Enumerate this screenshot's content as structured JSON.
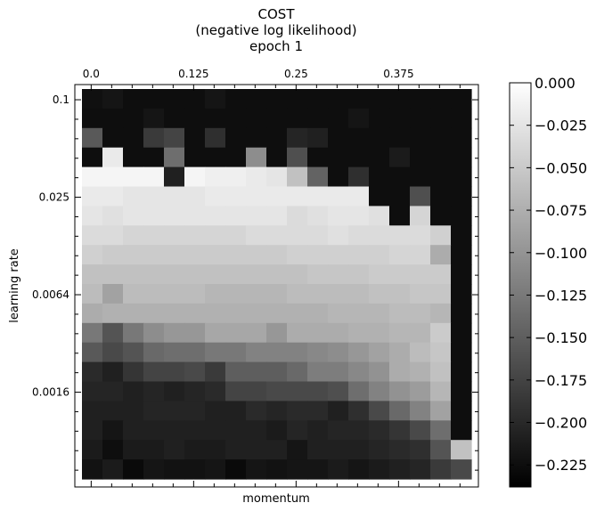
{
  "chart_data": {
    "type": "heatmap",
    "title": [
      "COST",
      "(negative log likelihood)",
      "epoch 1"
    ],
    "xlabel": "momentum",
    "ylabel": "learning rate",
    "x_tick_labels": [
      "0.0",
      "0.125",
      "0.25",
      "0.375"
    ],
    "y_tick_labels": [
      "0.1",
      "0.025",
      "0.0064",
      "0.0016"
    ],
    "colorbar": {
      "ticks": [
        0.0,
        -0.025,
        -0.05,
        -0.075,
        -0.1,
        -0.125,
        -0.15,
        -0.175,
        -0.2,
        -0.225
      ],
      "tick_labels": [
        "0.000",
        "−0.025",
        "−0.050",
        "−0.075",
        "−0.100",
        "−0.125",
        "−0.150",
        "−0.175",
        "−0.200",
        "−0.225"
      ],
      "vmin": -0.238,
      "vmax": 0.0,
      "cmap": "gray"
    },
    "grid": false,
    "n_cols": 19,
    "n_rows": 19,
    "values": [
      [
        -0.23,
        -0.225,
        -0.232,
        -0.232,
        -0.232,
        -0.232,
        -0.225,
        -0.232,
        -0.232,
        -0.232,
        -0.232,
        -0.232,
        -0.232,
        -0.232,
        -0.232,
        -0.232,
        -0.232,
        -0.232,
        -0.232
      ],
      [
        -0.232,
        -0.232,
        -0.232,
        -0.225,
        -0.232,
        -0.232,
        -0.232,
        -0.232,
        -0.232,
        -0.232,
        -0.232,
        -0.232,
        -0.232,
        -0.225,
        -0.232,
        -0.232,
        -0.232,
        -0.232,
        -0.232
      ],
      [
        -0.16,
        -0.232,
        -0.232,
        -0.19,
        -0.18,
        -0.232,
        -0.2,
        -0.232,
        -0.232,
        -0.232,
        -0.21,
        -0.215,
        -0.232,
        -0.232,
        -0.232,
        -0.232,
        -0.232,
        -0.232,
        -0.232
      ],
      [
        -0.232,
        -0.02,
        -0.232,
        -0.232,
        -0.14,
        -0.232,
        -0.232,
        -0.232,
        -0.11,
        -0.232,
        -0.17,
        -0.232,
        -0.232,
        -0.232,
        -0.232,
        -0.22,
        -0.232,
        -0.232,
        -0.232
      ],
      [
        -0.01,
        -0.01,
        -0.01,
        -0.01,
        -0.215,
        -0.01,
        -0.015,
        -0.015,
        -0.02,
        -0.025,
        -0.06,
        -0.15,
        -0.232,
        -0.2,
        -0.232,
        -0.232,
        -0.232,
        -0.232,
        -0.232
      ],
      [
        -0.02,
        -0.02,
        -0.025,
        -0.025,
        -0.025,
        -0.025,
        -0.02,
        -0.02,
        -0.02,
        -0.02,
        -0.02,
        -0.02,
        -0.02,
        -0.02,
        -0.232,
        -0.232,
        -0.17,
        -0.232,
        -0.232
      ],
      [
        -0.025,
        -0.03,
        -0.025,
        -0.025,
        -0.025,
        -0.025,
        -0.025,
        -0.025,
        -0.025,
        -0.025,
        -0.035,
        -0.03,
        -0.025,
        -0.025,
        -0.03,
        -0.232,
        -0.04,
        -0.232,
        -0.232
      ],
      [
        -0.035,
        -0.035,
        -0.04,
        -0.04,
        -0.04,
        -0.04,
        -0.04,
        -0.04,
        -0.035,
        -0.035,
        -0.035,
        -0.035,
        -0.03,
        -0.035,
        -0.035,
        -0.035,
        -0.035,
        -0.045,
        -0.232
      ],
      [
        -0.045,
        -0.05,
        -0.05,
        -0.05,
        -0.05,
        -0.05,
        -0.05,
        -0.05,
        -0.05,
        -0.05,
        -0.045,
        -0.045,
        -0.045,
        -0.045,
        -0.045,
        -0.04,
        -0.04,
        -0.08,
        -0.232
      ],
      [
        -0.06,
        -0.06,
        -0.06,
        -0.06,
        -0.06,
        -0.06,
        -0.06,
        -0.06,
        -0.06,
        -0.06,
        -0.06,
        -0.055,
        -0.055,
        -0.055,
        -0.05,
        -0.05,
        -0.05,
        -0.05,
        -0.232
      ],
      [
        -0.065,
        -0.09,
        -0.065,
        -0.065,
        -0.065,
        -0.065,
        -0.07,
        -0.07,
        -0.07,
        -0.07,
        -0.065,
        -0.065,
        -0.065,
        -0.065,
        -0.06,
        -0.06,
        -0.055,
        -0.055,
        -0.232
      ],
      [
        -0.08,
        -0.075,
        -0.075,
        -0.075,
        -0.075,
        -0.075,
        -0.075,
        -0.075,
        -0.075,
        -0.075,
        -0.075,
        -0.075,
        -0.07,
        -0.07,
        -0.07,
        -0.065,
        -0.065,
        -0.07,
        -0.232
      ],
      [
        -0.13,
        -0.165,
        -0.13,
        -0.11,
        -0.1,
        -0.1,
        -0.085,
        -0.085,
        -0.085,
        -0.1,
        -0.08,
        -0.08,
        -0.08,
        -0.075,
        -0.075,
        -0.07,
        -0.07,
        -0.05,
        -0.232
      ],
      [
        -0.16,
        -0.175,
        -0.165,
        -0.145,
        -0.14,
        -0.14,
        -0.13,
        -0.13,
        -0.12,
        -0.12,
        -0.12,
        -0.115,
        -0.11,
        -0.1,
        -0.09,
        -0.08,
        -0.065,
        -0.055,
        -0.232
      ],
      [
        -0.205,
        -0.215,
        -0.195,
        -0.18,
        -0.18,
        -0.175,
        -0.19,
        -0.155,
        -0.155,
        -0.155,
        -0.145,
        -0.125,
        -0.125,
        -0.115,
        -0.105,
        -0.08,
        -0.075,
        -0.06,
        -0.232
      ],
      [
        -0.21,
        -0.21,
        -0.215,
        -0.21,
        -0.215,
        -0.21,
        -0.205,
        -0.18,
        -0.18,
        -0.175,
        -0.175,
        -0.175,
        -0.17,
        -0.14,
        -0.12,
        -0.105,
        -0.095,
        -0.07,
        -0.232
      ],
      [
        -0.215,
        -0.215,
        -0.215,
        -0.21,
        -0.21,
        -0.21,
        -0.215,
        -0.215,
        -0.205,
        -0.21,
        -0.205,
        -0.205,
        -0.215,
        -0.2,
        -0.175,
        -0.145,
        -0.12,
        -0.09,
        -0.232
      ],
      [
        -0.215,
        -0.225,
        -0.215,
        -0.215,
        -0.215,
        -0.215,
        -0.215,
        -0.215,
        -0.215,
        -0.22,
        -0.21,
        -0.215,
        -0.21,
        -0.21,
        -0.205,
        -0.195,
        -0.175,
        -0.14,
        -0.232
      ],
      [
        -0.22,
        -0.232,
        -0.22,
        -0.22,
        -0.215,
        -0.22,
        -0.22,
        -0.215,
        -0.215,
        -0.215,
        -0.225,
        -0.215,
        -0.215,
        -0.215,
        -0.21,
        -0.205,
        -0.2,
        -0.165,
        -0.06
      ]
    ],
    "extra_bottom_row": [
      -0.228,
      -0.22,
      -0.236,
      -0.225,
      -0.228,
      -0.228,
      -0.225,
      -0.236,
      -0.225,
      -0.228,
      -0.225,
      -0.225,
      -0.22,
      -0.225,
      -0.22,
      -0.215,
      -0.21,
      -0.19,
      -0.175
    ]
  }
}
